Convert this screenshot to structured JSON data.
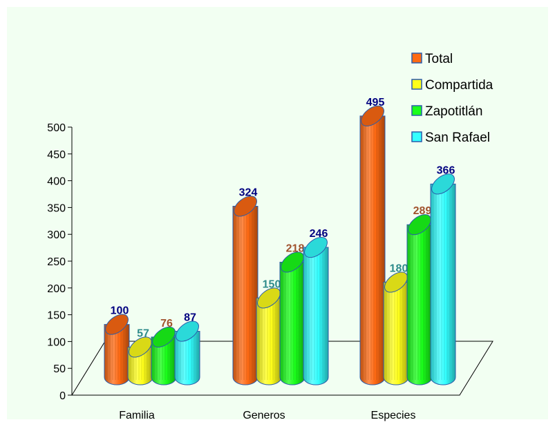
{
  "chart_data": {
    "type": "bar",
    "title": "",
    "xlabel": "",
    "ylabel": "",
    "categories": [
      "Familia",
      "Generos",
      "Especies"
    ],
    "ylim": [
      0,
      500
    ],
    "yticks": [
      "0",
      "50",
      "100",
      "150",
      "200",
      "250",
      "300",
      "350",
      "400",
      "450",
      "500"
    ],
    "legend_position": "top-right",
    "series": [
      {
        "name": "Total",
        "values": [
          100,
          324,
          495
        ],
        "color": "#ff6a13",
        "label_color": "#000080"
      },
      {
        "name": "Compartida",
        "values": [
          57,
          150,
          180
        ],
        "color": "#ffff1a",
        "label_color": "#2e8b8b"
      },
      {
        "name": "Zapotitlán",
        "values": [
          76,
          218,
          289
        ],
        "color": "#1aff1a",
        "label_color": "#a0522d"
      },
      {
        "name": "San Rafael",
        "values": [
          87,
          246,
          366
        ],
        "color": "#33ffff",
        "label_color": "#000080"
      }
    ],
    "background_color": "#f2fff2"
  }
}
